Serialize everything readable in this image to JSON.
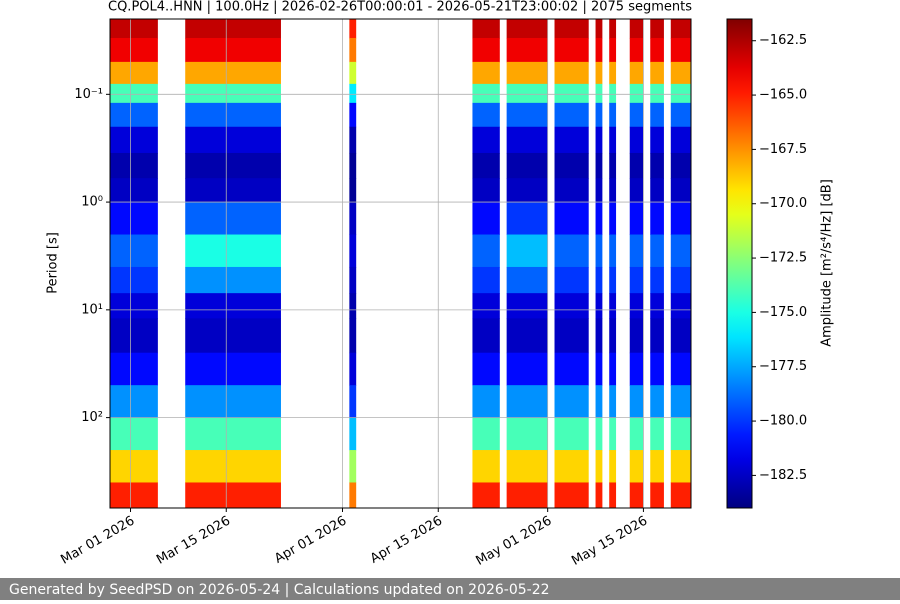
{
  "chart_data": {
    "type": "spectrogram",
    "title": "CQ.POL4..HNN | 100.0Hz | 2026-02-26T00:00:01 - 2026-05-21T23:00:02 | 2075 segments",
    "y_label": "Period [s]",
    "colorbar_label": "Amplitude [m²/s⁴/Hz] [dB]",
    "footer": "Generated by SeedPSD on 2026-05-24 | Calculations updated on 2026-05-22",
    "colormap": "jet",
    "grid": true,
    "y_log": true,
    "y_inverted": true,
    "xlim": [
      "2026-02-26T00:00:01",
      "2026-05-21T23:00:02"
    ],
    "xticks": [
      {
        "value": "2026-03-01",
        "label": "Mar 01 2026"
      },
      {
        "value": "2026-03-15",
        "label": "Mar 15 2026"
      },
      {
        "value": "2026-04-01",
        "label": "Apr 01 2026"
      },
      {
        "value": "2026-04-15",
        "label": "Apr 15 2026"
      },
      {
        "value": "2026-05-01",
        "label": "May 01 2026"
      },
      {
        "value": "2026-05-15",
        "label": "May 15 2026"
      }
    ],
    "ylim": [
      0.02,
      690
    ],
    "yticks": [
      {
        "value": 0.1,
        "label": "10⁻¹"
      },
      {
        "value": 1,
        "label": "10⁰"
      },
      {
        "value": 10,
        "label": "10¹"
      },
      {
        "value": 100,
        "label": "10²"
      }
    ],
    "clim": [
      -184,
      -161.5
    ],
    "cticks": [
      {
        "value": -162.5,
        "label": "−162.5"
      },
      {
        "value": -165,
        "label": "−165.0"
      },
      {
        "value": -167.5,
        "label": "−167.5"
      },
      {
        "value": -170,
        "label": "−170.0"
      },
      {
        "value": -172.5,
        "label": "−172.5"
      },
      {
        "value": -175,
        "label": "−175.0"
      },
      {
        "value": -177.5,
        "label": "−177.5"
      },
      {
        "value": -180,
        "label": "−180.0"
      },
      {
        "value": -182.5,
        "label": "−182.5"
      }
    ],
    "segments": [
      [
        "2026-02-26",
        "2026-03-05"
      ],
      [
        "2026-03-09",
        "2026-03-23"
      ],
      [
        "2026-04-02",
        "2026-04-03"
      ],
      [
        "2026-04-20",
        "2026-04-24"
      ],
      [
        "2026-04-25",
        "2026-05-01"
      ],
      [
        "2026-05-02",
        "2026-05-07"
      ],
      [
        "2026-05-08",
        "2026-05-09"
      ],
      [
        "2026-05-10",
        "2026-05-11"
      ],
      [
        "2026-05-13",
        "2026-05-15"
      ],
      [
        "2026-05-16",
        "2026-05-18"
      ],
      [
        "2026-05-19",
        "2026-05-22"
      ]
    ],
    "period_bins": [
      0.02,
      0.03,
      0.05,
      0.08,
      0.12,
      0.2,
      0.35,
      0.6,
      1,
      2,
      4,
      7,
      12,
      25,
      50,
      100,
      200,
      400,
      690
    ],
    "values": [
      [
        -163,
        -164,
        -168,
        -174,
        -179,
        -182,
        -183,
        -182.5,
        -181,
        -179,
        -180,
        -182,
        -182.5,
        -181,
        -178,
        -174,
        -169,
        -165
      ],
      [
        -163,
        -164,
        -168,
        -174,
        -179,
        -182,
        -183,
        -182.5,
        -179,
        -175,
        -178,
        -182,
        -182.5,
        -181,
        -178,
        -174,
        -169,
        -165
      ],
      [
        -165,
        -167,
        -171,
        -176,
        -181,
        -183,
        -183.5,
        -183.5,
        -182.5,
        -182,
        -182.5,
        -183,
        -183,
        -182,
        -180,
        -177,
        -172,
        -167
      ],
      [
        -163,
        -164,
        -168,
        -174,
        -179,
        -182,
        -183,
        -182.5,
        -181,
        -179,
        -180,
        -182,
        -182.5,
        -181,
        -178,
        -174,
        -169,
        -165
      ],
      [
        -163,
        -164,
        -168,
        -174,
        -179,
        -182,
        -183,
        -182.5,
        -180,
        -177,
        -179,
        -182,
        -182.5,
        -181,
        -178,
        -174,
        -169,
        -165
      ],
      [
        -163,
        -164,
        -168,
        -174,
        -179,
        -182,
        -183,
        -182.5,
        -181,
        -179,
        -180,
        -182,
        -182.5,
        -181,
        -178,
        -174,
        -169,
        -165
      ],
      [
        -163,
        -164,
        -168,
        -174,
        -179,
        -182,
        -183,
        -182.5,
        -181,
        -179,
        -180,
        -182,
        -182.5,
        -181,
        -178,
        -174,
        -169,
        -165
      ],
      [
        -163,
        -164,
        -168,
        -174,
        -179,
        -182,
        -183,
        -182.5,
        -181,
        -179,
        -180,
        -182,
        -182.5,
        -181,
        -178,
        -174,
        -169,
        -165
      ],
      [
        -163,
        -164,
        -168,
        -174,
        -179,
        -182,
        -183,
        -182.5,
        -181,
        -179,
        -180,
        -182,
        -182.5,
        -181,
        -178,
        -174,
        -169,
        -165
      ],
      [
        -163,
        -164,
        -168,
        -174,
        -179,
        -182,
        -183,
        -182.5,
        -181,
        -179,
        -180,
        -182,
        -182.5,
        -181,
        -178,
        -174,
        -169,
        -165
      ],
      [
        -163,
        -164,
        -168,
        -174,
        -179,
        -182,
        -183,
        -182.5,
        -181,
        -179,
        -180,
        -182,
        -182.5,
        -181,
        -178,
        -174,
        -169,
        -165
      ]
    ]
  }
}
